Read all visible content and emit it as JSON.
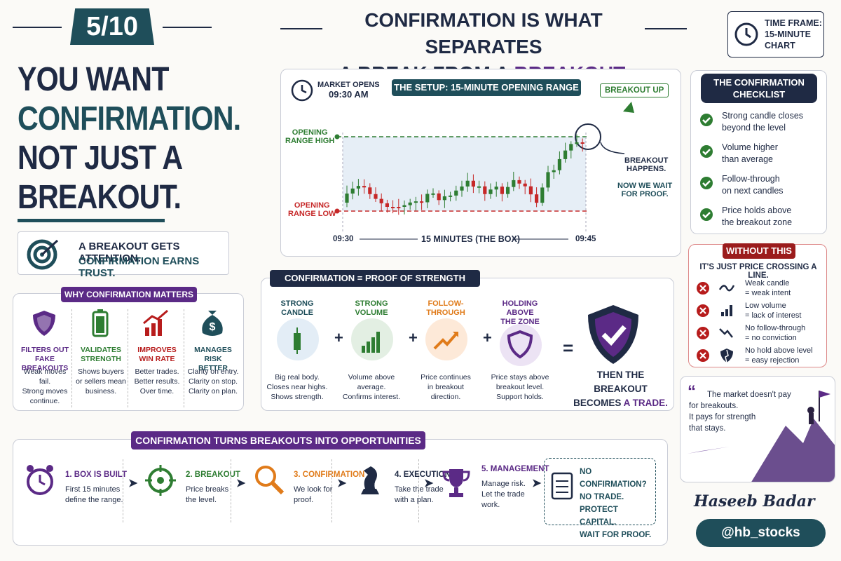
{
  "header": {
    "badge": "5/10",
    "headline": [
      "YOU WANT",
      "CONFIRMATION.",
      "NOT JUST A",
      "BREAKOUT."
    ],
    "tagline": [
      "A BREAKOUT GETS ATTENTION.",
      "CONFIRMATION EARNS TRUST."
    ],
    "title_line1": "CONFIRMATION IS WHAT SEPARATES",
    "title_line2a": "A BREAK FROM A ",
    "title_line2b": "BREAKOUT.",
    "timeframe": [
      "TIME FRAME:",
      "15-MINUTE",
      "CHART"
    ]
  },
  "setup": {
    "market_opens": "MARKET OPENS",
    "open_time": "09:30 AM",
    "title": "THE SETUP: 15-MINUTE OPENING RANGE",
    "breakout_up": "BREAKOUT UP",
    "range_high": [
      "OPENING",
      "RANGE HIGH"
    ],
    "range_low": [
      "OPENING",
      "RANGE LOW"
    ],
    "start": "09:30",
    "end": "09:45",
    "box": "15 MINUTES (THE BOX)",
    "happens": [
      "BREAKOUT",
      "HAPPENS."
    ],
    "wait": [
      "NOW WE WAIT",
      "FOR PROOF."
    ]
  },
  "checklist": {
    "title": [
      "THE CONFIRMATION",
      "CHECKLIST"
    ],
    "items": [
      [
        "Strong candle closes",
        "beyond the level"
      ],
      [
        "Volume higher",
        "than average"
      ],
      [
        "Follow-through",
        "on next candles"
      ],
      [
        "Price holds above",
        "the breakout zone"
      ]
    ]
  },
  "without": {
    "title": "WITHOUT THIS",
    "subtitle": "IT'S JUST PRICE CROSSING A LINE.",
    "items": [
      [
        "Weak candle",
        "= weak intent"
      ],
      [
        "Low volume",
        "= lack of interest"
      ],
      [
        "No follow-through",
        "= no conviction"
      ],
      [
        "No hold above level",
        "= easy rejection"
      ]
    ]
  },
  "quote": {
    "lines": [
      "The market doesn't pay",
      "for breakouts.",
      "It pays for strength",
      "that stays."
    ]
  },
  "signature": {
    "name": "Haseeb Badar",
    "handle": "@hb_stocks"
  },
  "why": {
    "title": "WHY CONFIRMATION MATTERS",
    "cards": [
      {
        "title": [
          "FILTERS OUT",
          "FAKE BREAKOUTS"
        ],
        "desc": [
          "Weak moves fail.",
          "Strong moves",
          "continue."
        ]
      },
      {
        "title": [
          "VALIDATES",
          "STRENGTH"
        ],
        "desc": [
          "Shows buyers",
          "or sellers mean",
          "business."
        ]
      },
      {
        "title": [
          "IMPROVES",
          "WIN RATE"
        ],
        "desc": [
          "Better trades.",
          "Better results.",
          "Over time."
        ]
      },
      {
        "title": [
          "MANAGES RISK",
          "BETTER"
        ],
        "desc": [
          "Clarity on entry.",
          "Clarity on stop.",
          "Clarity on plan."
        ]
      }
    ]
  },
  "proof": {
    "title": "CONFIRMATION = PROOF OF STRENGTH",
    "items": [
      {
        "title": [
          "STRONG CANDLE"
        ],
        "desc": [
          "Big real body.",
          "Closes near highs.",
          "Shows strength."
        ]
      },
      {
        "title": [
          "STRONG VOLUME"
        ],
        "desc": [
          "Volume above",
          "average.",
          "Confirms interest."
        ]
      },
      {
        "title": [
          "FOLLOW-THROUGH"
        ],
        "desc": [
          "Price continues",
          "in breakout",
          "direction."
        ]
      },
      {
        "title": [
          "HOLDING ABOVE",
          "THE ZONE"
        ],
        "desc": [
          "Price stays above",
          "breakout level.",
          "Support holds."
        ]
      }
    ],
    "result_line1": "THEN THE BREAKOUT",
    "result_line2a": "BECOMES ",
    "result_line2b": "A TRADE."
  },
  "process": {
    "title": "CONFIRMATION TURNS BREAKOUTS INTO OPPORTUNITIES",
    "steps": [
      {
        "title": "1. BOX IS BUILT",
        "desc": [
          "First 15 minutes",
          "define the range."
        ]
      },
      {
        "title": "2. BREAKOUT",
        "desc": [
          "Price breaks",
          "the level."
        ]
      },
      {
        "title": "3. CONFIRMATION",
        "desc": [
          "We look for",
          "proof."
        ]
      },
      {
        "title": "4. EXECUTION",
        "desc": [
          "Take the trade",
          "with a plan."
        ]
      },
      {
        "title": "5. MANAGEMENT",
        "desc": [
          "Manage risk.",
          "Let the trade",
          "work."
        ]
      }
    ],
    "note": [
      "NO CONFIRMATION?",
      "NO TRADE.",
      "PROTECT CAPITAL.",
      "WAIT FOR PROOF."
    ]
  }
}
